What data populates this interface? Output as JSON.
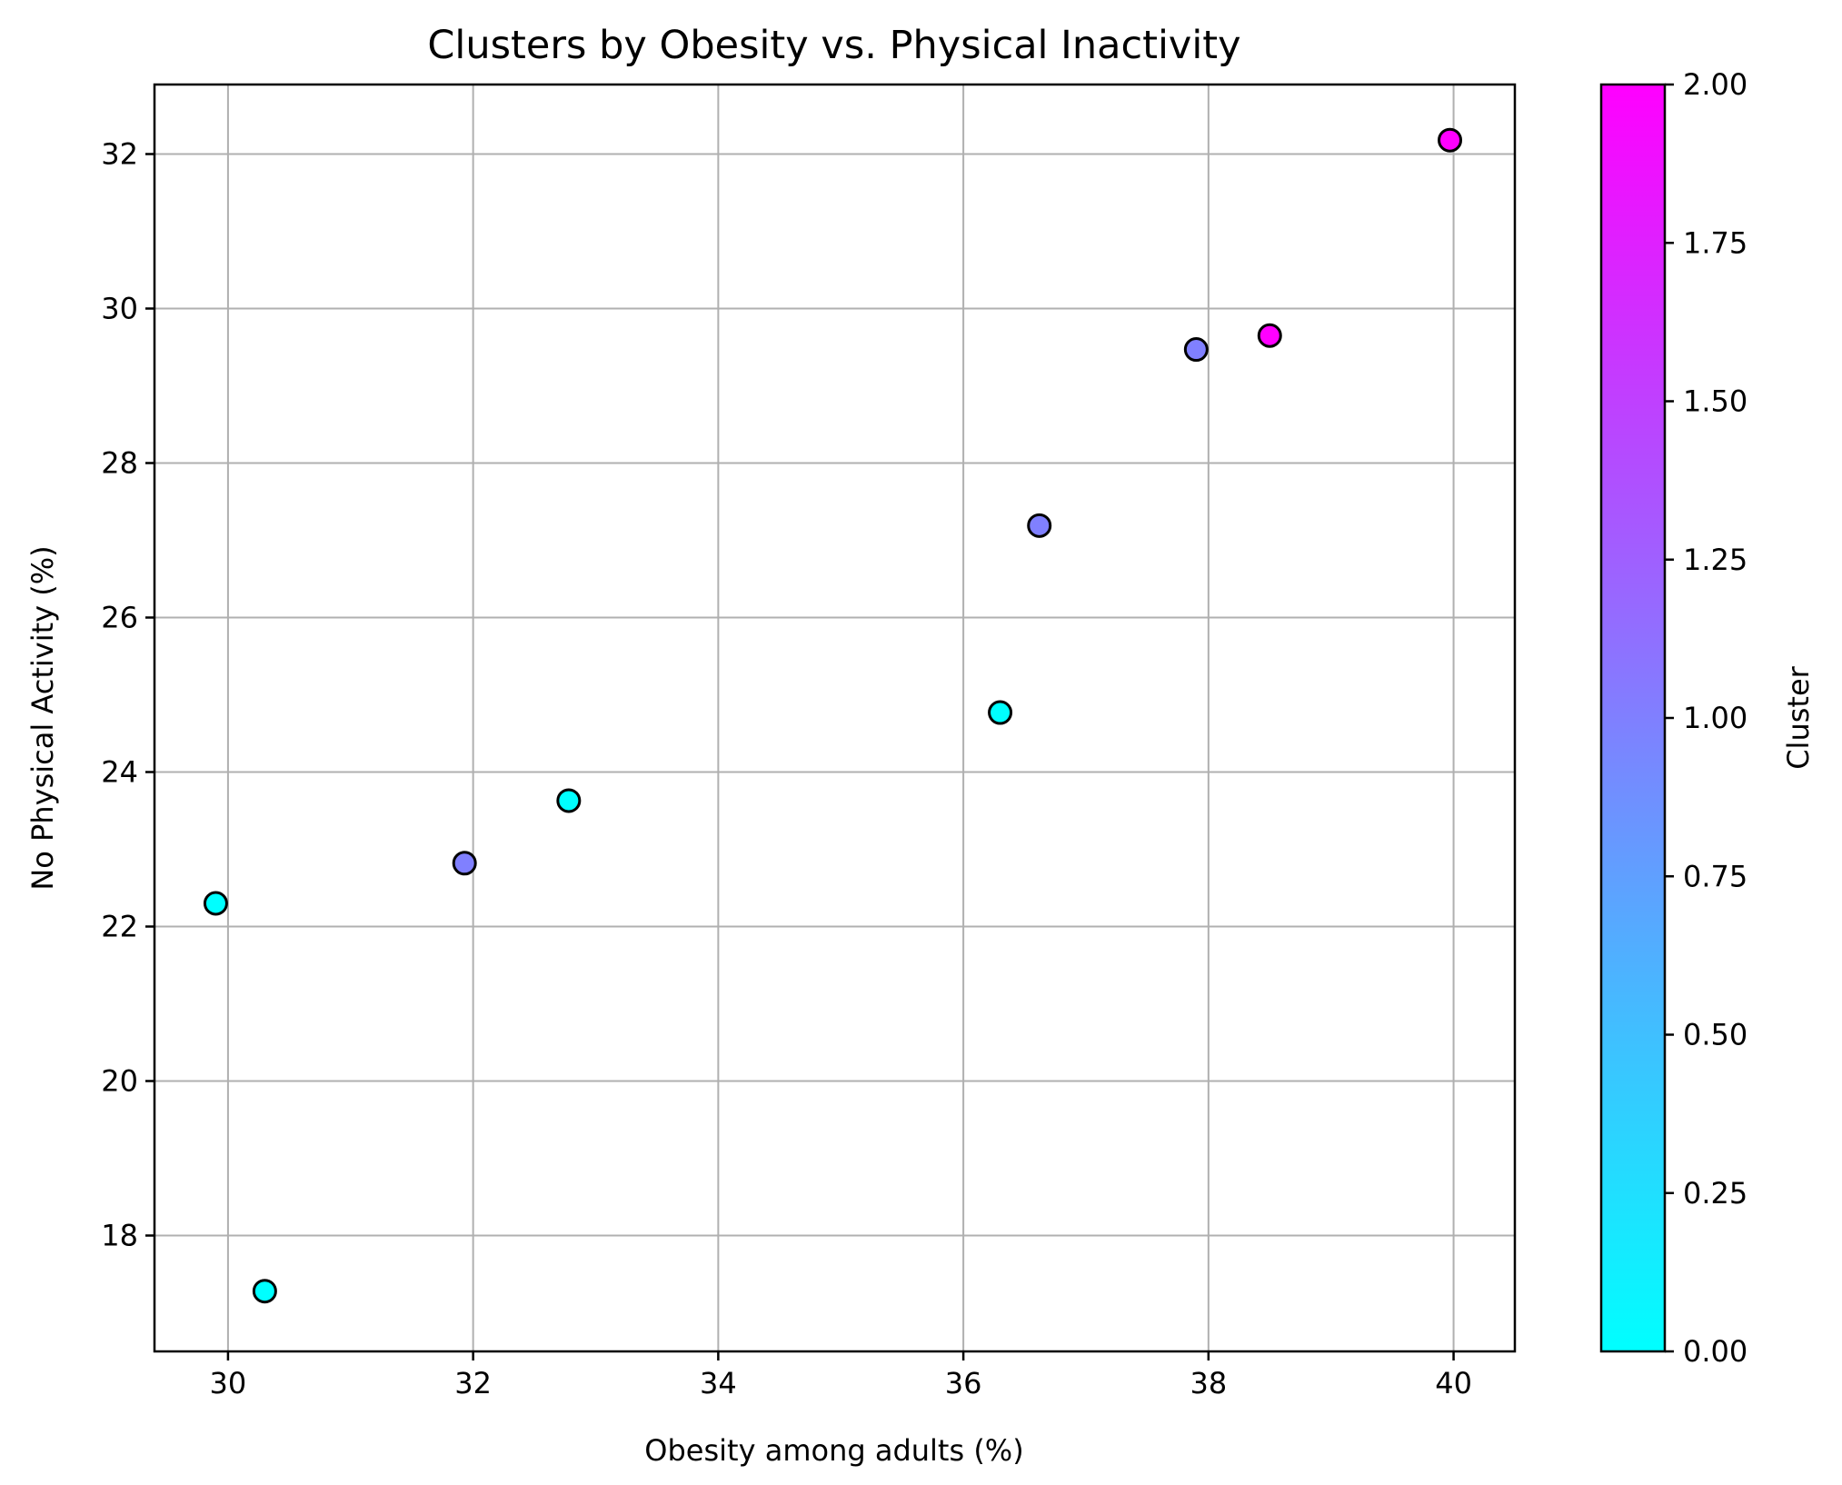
{
  "chart_data": {
    "type": "scatter",
    "title": "Clusters by Obesity vs. Physical Inactivity",
    "xlabel": "Obesity among adults (%)",
    "ylabel": "No Physical Activity (%)",
    "xlim": [
      29.4,
      40.5
    ],
    "ylim": [
      16.5,
      32.9
    ],
    "xticks": [
      30,
      32,
      34,
      36,
      38,
      40
    ],
    "yticks": [
      18,
      20,
      22,
      24,
      26,
      28,
      30,
      32
    ],
    "grid": true,
    "points": [
      {
        "x": 39.97,
        "y": 32.18,
        "cluster": 2
      },
      {
        "x": 38.5,
        "y": 29.65,
        "cluster": 2
      },
      {
        "x": 37.9,
        "y": 29.47,
        "cluster": 1
      },
      {
        "x": 36.62,
        "y": 27.19,
        "cluster": 1
      },
      {
        "x": 36.3,
        "y": 24.77,
        "cluster": 0
      },
      {
        "x": 32.78,
        "y": 23.63,
        "cluster": 0
      },
      {
        "x": 31.93,
        "y": 22.82,
        "cluster": 1
      },
      {
        "x": 29.9,
        "y": 22.3,
        "cluster": 0
      },
      {
        "x": 30.3,
        "y": 17.28,
        "cluster": 0
      }
    ],
    "colorbar": {
      "label": "Cluster",
      "colormap": "cool",
      "range": [
        0,
        2
      ],
      "ticks": [
        "0.00",
        "0.25",
        "0.50",
        "0.75",
        "1.00",
        "1.25",
        "1.50",
        "1.75",
        "2.00"
      ],
      "colors": {
        "low": "#00ffff",
        "high": "#ff00ff"
      }
    }
  }
}
